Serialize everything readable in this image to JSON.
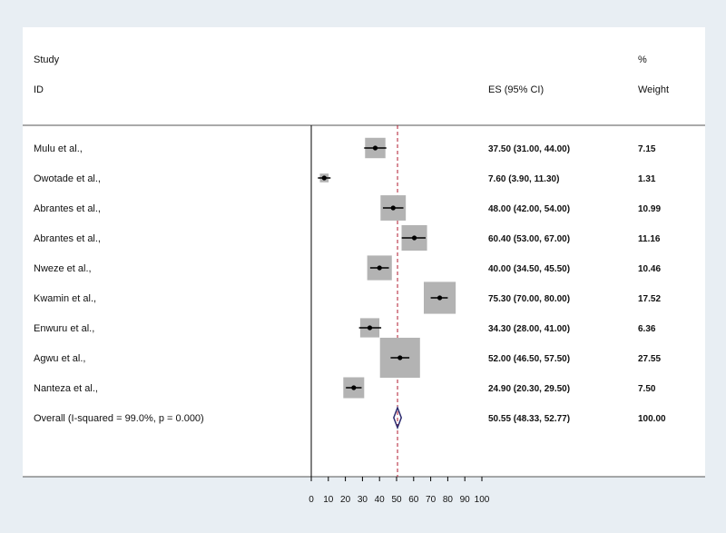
{
  "chart_data": {
    "type": "forest",
    "headers": {
      "study": "Study",
      "id": "ID",
      "es": "ES (95% CI)",
      "pct": "%",
      "weight": "Weight"
    },
    "studies": [
      {
        "label": "Mulu et al.,",
        "es": 37.5,
        "lo": 31.0,
        "hi": 44.0,
        "es_text": "37.50 (31.00, 44.00)",
        "weight": 7.15,
        "weight_text": "7.15"
      },
      {
        "label": "Owotade et al.,",
        "es": 7.6,
        "lo": 3.9,
        "hi": 11.3,
        "es_text": "7.60 (3.90, 11.30)",
        "weight": 1.31,
        "weight_text": "1.31"
      },
      {
        "label": "Abrantes et al.,",
        "es": 48.0,
        "lo": 42.0,
        "hi": 54.0,
        "es_text": "48.00 (42.00, 54.00)",
        "weight": 10.99,
        "weight_text": "10.99"
      },
      {
        "label": "Abrantes et al.,",
        "es": 60.4,
        "lo": 53.0,
        "hi": 67.0,
        "es_text": "60.40 (53.00, 67.00)",
        "weight": 11.16,
        "weight_text": "11.16"
      },
      {
        "label": "Nweze et al.,",
        "es": 40.0,
        "lo": 34.5,
        "hi": 45.5,
        "es_text": "40.00 (34.50, 45.50)",
        "weight": 10.46,
        "weight_text": "10.46"
      },
      {
        "label": "Kwamin et al.,",
        "es": 75.3,
        "lo": 70.0,
        "hi": 80.0,
        "es_text": "75.30 (70.00, 80.00)",
        "weight": 17.52,
        "weight_text": "17.52"
      },
      {
        "label": "Enwuru et al.,",
        "es": 34.3,
        "lo": 28.0,
        "hi": 41.0,
        "es_text": "34.30 (28.00, 41.00)",
        "weight": 6.36,
        "weight_text": "6.36"
      },
      {
        "label": "Agwu et al.,",
        "es": 52.0,
        "lo": 46.5,
        "hi": 57.5,
        "es_text": "52.00 (46.50, 57.50)",
        "weight": 27.55,
        "weight_text": "27.55"
      },
      {
        "label": "Nanteza et al.,",
        "es": 24.9,
        "lo": 20.3,
        "hi": 29.5,
        "es_text": "24.90 (20.30, 29.50)",
        "weight": 7.5,
        "weight_text": "7.50"
      }
    ],
    "overall": {
      "label": "Overall  (I-squared = 99.0%, p = 0.000)",
      "es": 50.55,
      "lo": 48.33,
      "hi": 52.77,
      "es_text": "50.55 (48.33, 52.77)",
      "weight": 100.0,
      "weight_text": "100.00"
    },
    "xlim": [
      0,
      100
    ],
    "xticks": [
      0,
      10,
      20,
      30,
      40,
      50,
      60,
      70,
      80,
      90,
      100
    ],
    "null_line": 0,
    "colors": {
      "box": "#b3b3b3",
      "ci": "#000000",
      "diamond": "#2b2a6e",
      "overall_line": "#b11a2e",
      "background": "#e8eef3"
    }
  }
}
